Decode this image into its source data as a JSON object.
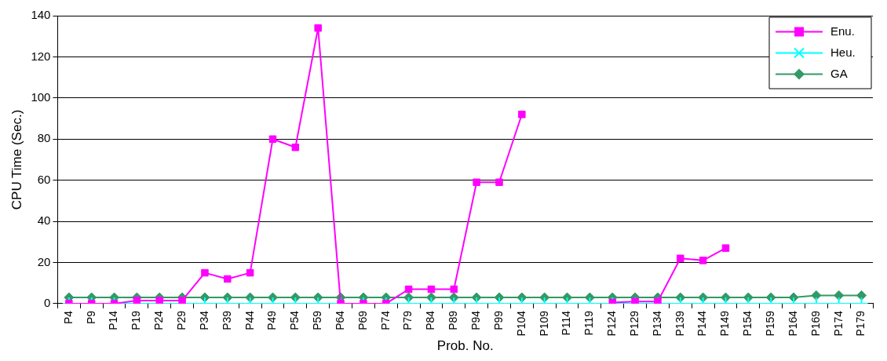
{
  "chart_data": {
    "type": "line",
    "xlabel": "Prob. No.",
    "ylabel": "CPU Time (Sec.)",
    "categories": [
      "P4",
      "P9",
      "P14",
      "P19",
      "P24",
      "P29",
      "P34",
      "P39",
      "P44",
      "P49",
      "P54",
      "P59",
      "P64",
      "P69",
      "P74",
      "P79",
      "P84",
      "P89",
      "P94",
      "P99",
      "P104",
      "P109",
      "P114",
      "P119",
      "P124",
      "P129",
      "P134",
      "P139",
      "P144",
      "P149",
      "P154",
      "P159",
      "P164",
      "P169",
      "P174",
      "P179"
    ],
    "series": [
      {
        "name": "Enu.",
        "color": "#ff00ff",
        "marker": "square",
        "values": [
          0,
          0,
          0,
          1.5,
          1.5,
          1.5,
          15,
          12,
          15,
          80,
          76,
          134,
          0,
          0,
          0,
          7,
          7,
          7,
          59,
          59,
          92,
          null,
          null,
          null,
          0.5,
          1,
          1,
          22,
          21,
          27,
          null,
          null,
          null,
          null,
          null,
          null
        ]
      },
      {
        "name": "Heu.",
        "color": "#00ffff",
        "marker": "cross",
        "values": [
          0,
          0,
          0,
          0,
          0,
          0,
          0,
          0,
          0,
          0,
          0,
          0,
          0,
          0,
          0,
          0,
          0,
          0,
          0,
          0,
          0,
          0,
          0,
          0,
          0,
          0,
          0,
          0,
          0,
          0,
          0,
          0,
          0,
          0,
          0,
          0
        ]
      },
      {
        "name": "GA",
        "color": "#339966",
        "marker": "diamond",
        "values": [
          3,
          3,
          3,
          3,
          3,
          3,
          3,
          3,
          3,
          3,
          3,
          3,
          3,
          3,
          3,
          3,
          3,
          3,
          3,
          3,
          3,
          3,
          3,
          3,
          3,
          3,
          3,
          3,
          3,
          3,
          3,
          3,
          3,
          4,
          4,
          4
        ]
      }
    ],
    "ylim": [
      0,
      140
    ],
    "yticks": [
      0,
      20,
      40,
      60,
      80,
      100,
      120,
      140
    ],
    "grid": "y",
    "legend": "top right"
  }
}
